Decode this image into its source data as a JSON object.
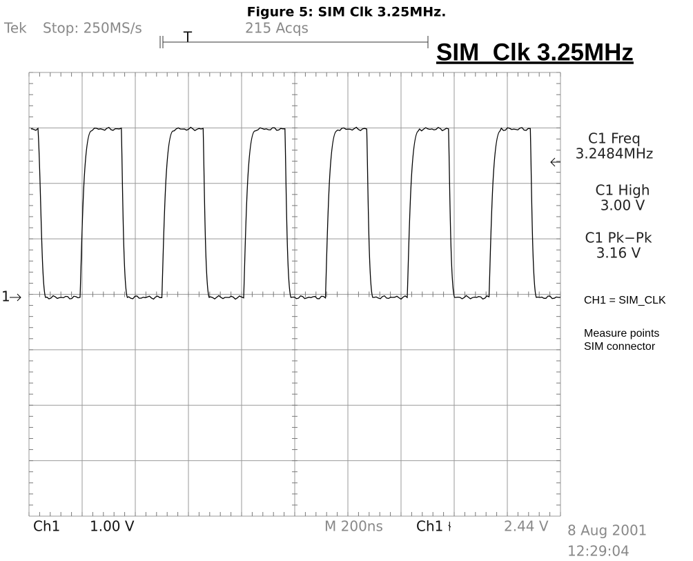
{
  "figure_title": "Figure 5: SIM Clk 3.25MHz.",
  "status": {
    "brand": "Tek",
    "state": "Stop: 250MS/s",
    "acqs": "215 Acqs",
    "trigger": "T"
  },
  "title": "SIM_Clk 3.25MHz",
  "channel_marker": "1",
  "measurements": [
    {
      "label": "C1 Freq",
      "value": "3.2484MHz"
    },
    {
      "label": "C1 High",
      "value": "3.00 V"
    },
    {
      "label": "C1 Pk−Pk",
      "value": "3.16 V"
    }
  ],
  "notes": [
    "CH1 = SIM_CLK",
    "Measure points",
    "SIM connector"
  ],
  "footer": {
    "channel": "Ch1",
    "scale": "1.00 V",
    "timebase": "M 200ns",
    "trig_channel": "Ch1 ⫮",
    "trig_level": "2.44 V",
    "date": "8 Aug 2001",
    "time": "12:29:04"
  }
}
